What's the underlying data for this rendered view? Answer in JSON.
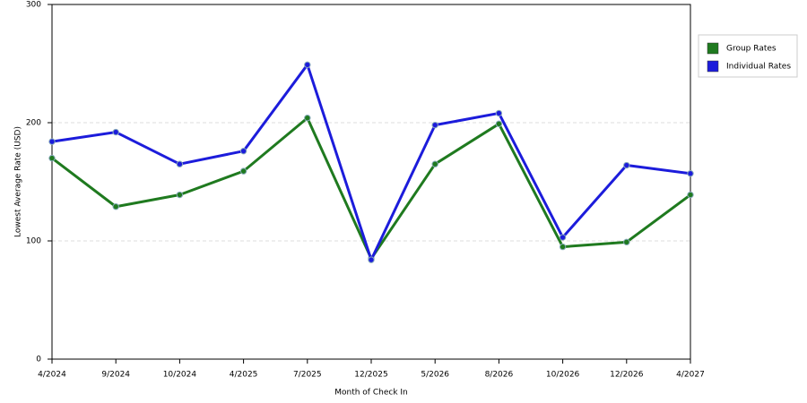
{
  "chart_data": {
    "type": "line",
    "x_label": "Month of Check In",
    "y_label": "Lowest Average Rate (USD)",
    "categories": [
      "4/2024",
      "9/2024",
      "10/2024",
      "4/2025",
      "7/2025",
      "12/2025",
      "5/2026",
      "8/2026",
      "10/2026",
      "12/2026",
      "4/2027"
    ],
    "series": [
      {
        "name": "Group Rates",
        "color": "#1f7a1f",
        "values": [
          170,
          129,
          139,
          159,
          204,
          85,
          165,
          199,
          95,
          99,
          139
        ]
      },
      {
        "name": "Individual Rates",
        "color": "#1c1cdb",
        "values": [
          184,
          192,
          165,
          176,
          249,
          84,
          198,
          208,
          103,
          164,
          157
        ]
      }
    ],
    "ylim": [
      0,
      300
    ],
    "yticks": [
      0,
      100,
      200,
      300
    ],
    "grid": true,
    "legend": "right"
  }
}
